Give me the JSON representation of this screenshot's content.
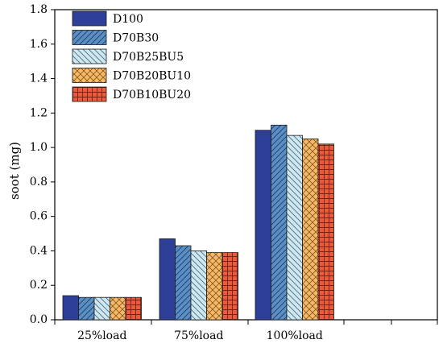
{
  "chart_data": {
    "type": "bar",
    "title": "",
    "xlabel": "",
    "ylabel": "soot (mg)",
    "ylim": [
      0,
      1.8
    ],
    "yticks": [
      "0.0",
      "0.2",
      "0.4",
      "0.6",
      "0.8",
      "1.0",
      "1.2",
      "1.4",
      "1.6",
      "1.8"
    ],
    "categories": [
      "25%load",
      "75%load",
      "100%load"
    ],
    "grid": false,
    "legend_position": "top-left",
    "series": [
      {
        "name": "D100",
        "values": [
          0.14,
          0.47,
          1.1
        ],
        "color": "#2e3f97",
        "pattern": "solid"
      },
      {
        "name": "D70B30",
        "values": [
          0.13,
          0.43,
          1.13
        ],
        "color": "#5b8fc4",
        "pattern": "diagonal-up"
      },
      {
        "name": "D70B25BU5",
        "values": [
          0.13,
          0.4,
          1.07
        ],
        "color": "#cfe8f0",
        "pattern": "diagonal-down"
      },
      {
        "name": "D70B20BU10",
        "values": [
          0.13,
          0.39,
          1.05
        ],
        "color": "#f6ba6b",
        "pattern": "crosshatch"
      },
      {
        "name": "D70B10BU20",
        "values": [
          0.13,
          0.39,
          1.02
        ],
        "color": "#e85b3d",
        "pattern": "grid"
      }
    ]
  }
}
